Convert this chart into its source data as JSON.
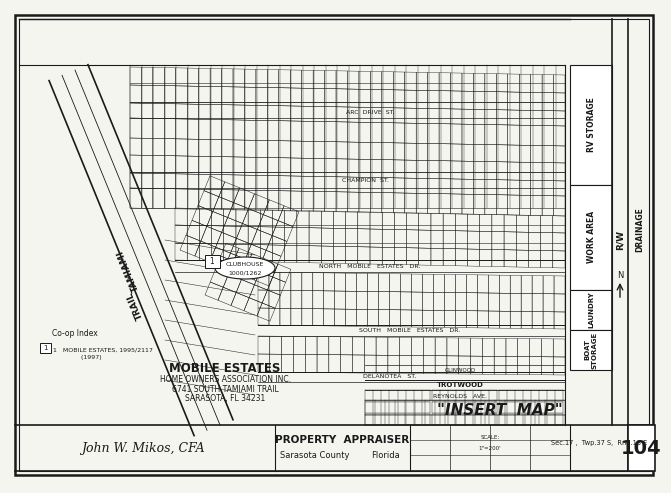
{
  "title": "MOBILE ESTATES",
  "subtitle_line1": "HOME OWNERS ASSOCIATION INC.",
  "subtitle_line2": "6741 SOUTH TAMIAMI TRAIL",
  "subtitle_line3": "SARASOTA, FL 34231",
  "insert_map": "\"INSERT  MAP\"",
  "appraiser_name": "John W. Mikos, CFA",
  "appraiser_title": "PROPERTY  APPRAISER",
  "appraiser_sub1": "Sarasota County",
  "appraiser_sub2": "Florida",
  "section_info": "Sec.17 ,  Twp.37 S,  Rng.18 E",
  "page_num": "104",
  "co_op_index": "Co-op Index",
  "co_op_entry1": "1   MOBILE ESTATES, 1995/2117",
  "co_op_entry2": "              (1997)",
  "bg_color": "#f5f5f0",
  "border_color": "#1a1a1a",
  "rv_storage": "RV STORAGE",
  "work_area": "WORK AREA",
  "laundry": "LAUNDRY",
  "boat_storage": "BOAT\nSTORAGE",
  "drainage": "DRAINAGE",
  "rw": "R/W",
  "clubhouse_text": "CLUBHOUSE",
  "clubhouse_num": "1000/1262",
  "tamiami_trail1": "TAMIAMI",
  "tamiami_trail2": "TRAIL",
  "road1": "ARC  DRIVE  ST.",
  "road2": "CHAMPION  ST.",
  "road3": "NORTH   MOBILE   ESTATES   DR.",
  "road4": "SOUTH   MOBILE   ESTATES   DR.",
  "road5": "DELANOTEA   ST.",
  "road6": "REYNOLDS   AVE.",
  "road7": "TROTWOOD",
  "road8": "GLINWOOD"
}
